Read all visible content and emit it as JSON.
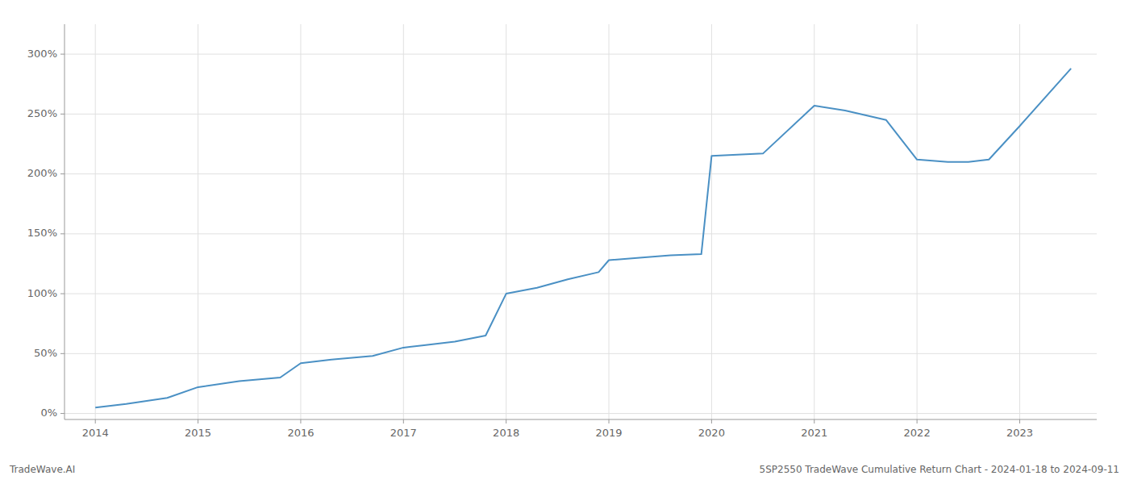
{
  "chart_data": {
    "type": "line",
    "title": "5SP2550 TradeWave Cumulative Return Chart - 2024-01-18 to 2024-09-11",
    "annotations": [
      "TradeWave.AI"
    ],
    "x": [
      2014.0,
      2014.3,
      2014.7,
      2015.0,
      2015.4,
      2015.8,
      2016.0,
      2016.3,
      2016.7,
      2017.0,
      2017.2,
      2017.5,
      2017.8,
      2018.0,
      2018.3,
      2018.6,
      2018.9,
      2019.0,
      2019.3,
      2019.6,
      2019.9,
      2020.0,
      2020.5,
      2021.0,
      2021.3,
      2021.7,
      2022.0,
      2022.3,
      2022.5,
      2022.7,
      2023.0,
      2023.5
    ],
    "values": [
      5,
      8,
      13,
      22,
      27,
      30,
      42,
      45,
      48,
      55,
      57,
      60,
      65,
      100,
      105,
      112,
      118,
      128,
      130,
      132,
      133,
      215,
      217,
      257,
      253,
      245,
      212,
      210,
      210,
      212,
      240,
      288
    ],
    "color": "#4a90c4",
    "xlim": [
      2013.7,
      2023.75
    ],
    "ylim": [
      -5,
      325
    ],
    "xticks": [
      2014,
      2015,
      2016,
      2017,
      2018,
      2019,
      2020,
      2021,
      2022,
      2023
    ],
    "yticks": [
      {
        "value": 0,
        "label": "0%"
      },
      {
        "value": 50,
        "label": "50%"
      },
      {
        "value": 100,
        "label": "100%"
      },
      {
        "value": 150,
        "label": "150%"
      },
      {
        "value": 200,
        "label": "200%"
      },
      {
        "value": 250,
        "label": "250%"
      },
      {
        "value": 300,
        "label": "300%"
      }
    ],
    "grid": true
  }
}
